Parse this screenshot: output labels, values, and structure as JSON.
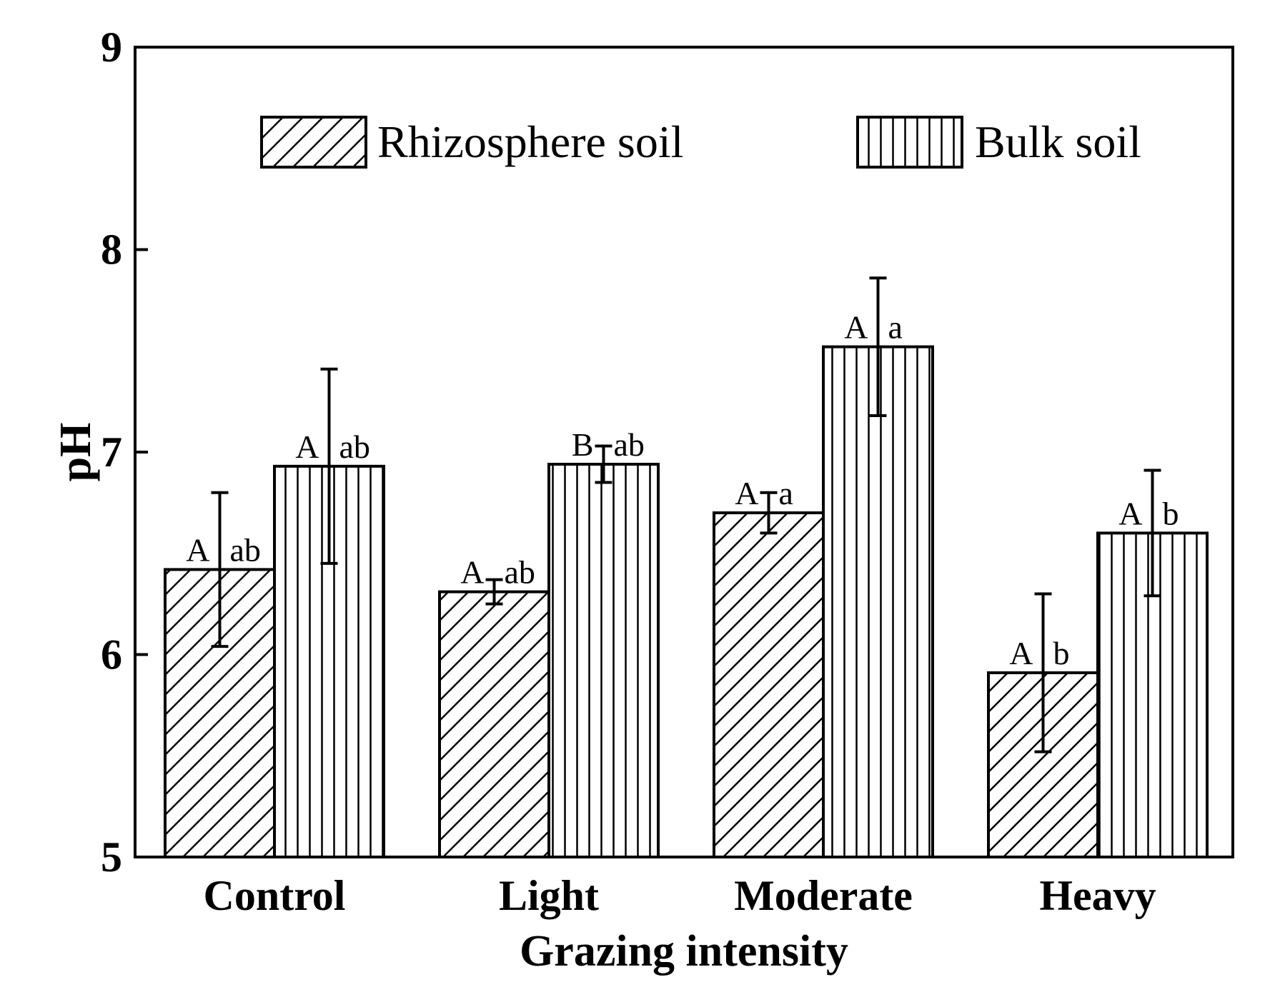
{
  "chart_data": {
    "type": "bar",
    "title": "",
    "xlabel": "Grazing intensity",
    "ylabel": "pH",
    "ylim": [
      5,
      9
    ],
    "yticks": [
      "5",
      "6",
      "7",
      "8",
      "9"
    ],
    "categories": [
      "Control",
      "Light",
      "Moderate",
      "Heavy"
    ],
    "series": [
      {
        "name": "Rhizosphere soil",
        "pattern": "diagonal-hatch",
        "values": [
          6.42,
          6.31,
          6.7,
          5.91
        ],
        "errors": [
          0.38,
          0.06,
          0.1,
          0.39
        ],
        "letters_upper": [
          "A",
          "A",
          "A",
          "A"
        ],
        "letters_lower": [
          "ab",
          "ab",
          "a",
          "b"
        ]
      },
      {
        "name": "Bulk soil",
        "pattern": "vertical-hatch",
        "values": [
          6.93,
          6.94,
          7.52,
          6.6
        ],
        "errors": [
          0.48,
          0.09,
          0.34,
          0.31
        ],
        "letters_upper": [
          "A",
          "B",
          "A",
          "A"
        ],
        "letters_lower": [
          "ab",
          "ab",
          "a",
          "b"
        ]
      }
    ],
    "legend": {
      "position": "top",
      "items": [
        "Rhizosphere soil",
        "Bulk soil"
      ]
    }
  },
  "colors": {
    "ink": "#000000",
    "background": "#ffffff"
  }
}
